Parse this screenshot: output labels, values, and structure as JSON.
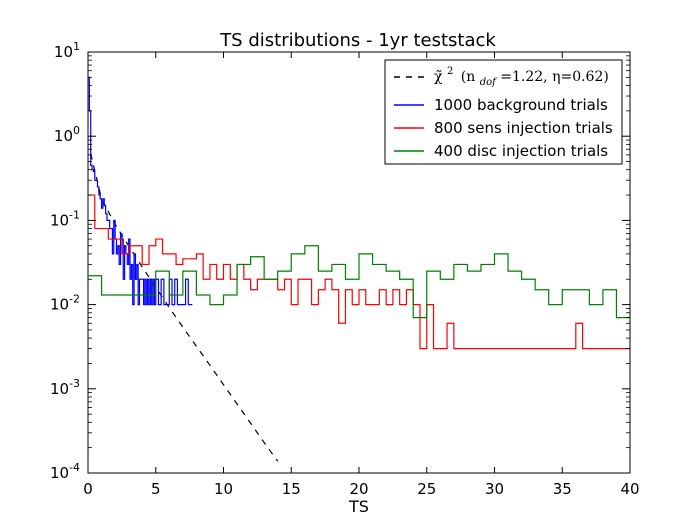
{
  "chart_data": {
    "type": "line",
    "title": "TS distributions - 1yr teststack",
    "xlabel": "TS",
    "ylabel": "",
    "xlim": [
      0,
      40
    ],
    "ylim": [
      0.0001,
      10
    ],
    "yscale": "log",
    "grid": false,
    "legend_position": "top-right",
    "x_ticks": [
      "0",
      "5",
      "10",
      "15",
      "20",
      "25",
      "30",
      "35",
      "40"
    ],
    "y_ticks": [
      {
        "base": "10",
        "exp": "-4"
      },
      {
        "base": "10",
        "exp": "-3"
      },
      {
        "base": "10",
        "exp": "-2"
      },
      {
        "base": "10",
        "exp": "-1"
      },
      {
        "base": "10",
        "exp": "0"
      },
      {
        "base": "10",
        "exp": "1"
      }
    ],
    "series": [
      {
        "name": "χ̃² (n_dof=1.22, η=0.62)",
        "legend_prefix": "χ̃",
        "legend_sup": "2",
        "legend_args": "(n",
        "legend_sub": "dof",
        "legend_rest": "=1.22, η=0.62)",
        "style": "dashed",
        "color": "#000000",
        "x": [
          0.2,
          1,
          2,
          3,
          4,
          5,
          6,
          7,
          8,
          9,
          10,
          11,
          12,
          13,
          14
        ],
        "values": [
          0.62,
          0.18,
          0.09,
          0.05,
          0.028,
          0.016,
          0.0092,
          0.0054,
          0.0032,
          0.0019,
          0.00112,
          0.00066,
          0.00039,
          0.00023,
          0.000138
        ]
      },
      {
        "name": "1000 background trials",
        "style": "step",
        "color": "#0000ff",
        "x": [
          0.0,
          0.1,
          0.2,
          0.3,
          0.4,
          0.5,
          0.6,
          0.7,
          0.8,
          0.9,
          1.0,
          1.1,
          1.2,
          1.3,
          1.4,
          1.5,
          1.6,
          1.7,
          1.8,
          1.9,
          2.0,
          2.1,
          2.2,
          2.3,
          2.4,
          2.5,
          2.6,
          2.7,
          2.8,
          2.9,
          3.0,
          3.1,
          3.2,
          3.3,
          3.4,
          3.5,
          3.6,
          3.7,
          3.8,
          3.9,
          4.0,
          4.1,
          4.2,
          4.3,
          4.4,
          4.5,
          4.6,
          4.7,
          4.8,
          4.9,
          5.0,
          5.2,
          5.4,
          5.6,
          5.8,
          6.0,
          6.2,
          6.4,
          6.6,
          6.8,
          7.0,
          7.2,
          7.4,
          7.6
        ],
        "values": [
          5.0,
          2.0,
          0.45,
          0.4,
          0.38,
          0.3,
          0.3,
          0.25,
          0.2,
          0.18,
          0.14,
          0.18,
          0.15,
          0.12,
          0.1,
          0.1,
          0.08,
          0.08,
          0.04,
          0.1,
          0.06,
          0.04,
          0.05,
          0.03,
          0.07,
          0.06,
          0.02,
          0.05,
          0.04,
          0.03,
          0.06,
          0.02,
          0.03,
          0.01,
          0.04,
          0.02,
          0.03,
          0.01,
          0.02,
          0.02,
          0.02,
          0.01,
          0.02,
          0.01,
          0.02,
          0.01,
          0.02,
          0.01,
          0.02,
          0.01,
          0.02,
          0.01,
          0.02,
          0.01,
          0.01,
          0.02,
          0.01,
          0.02,
          0.01,
          0.01,
          0.01,
          0.02,
          0.01,
          0.01
        ]
      },
      {
        "name": "800 sens injection trials",
        "style": "step",
        "color": "#ff0000",
        "x": [
          0.0,
          0.5,
          1.0,
          1.5,
          2.0,
          2.5,
          3.0,
          3.5,
          4.0,
          4.5,
          5.0,
          5.5,
          6.0,
          6.5,
          7.0,
          7.5,
          8.0,
          8.5,
          9.0,
          9.5,
          10.0,
          10.5,
          11.0,
          11.5,
          12.0,
          12.5,
          13.0,
          13.5,
          14.0,
          14.5,
          15.0,
          15.5,
          16.0,
          16.5,
          17.0,
          17.5,
          18.0,
          18.5,
          19.0,
          19.5,
          20.0,
          20.5,
          21.0,
          21.5,
          22.0,
          22.5,
          23.0,
          23.5,
          24.0,
          24.5,
          25.0,
          25.5,
          26.0,
          26.5,
          27.0,
          27.5,
          28.0,
          28.5,
          29.0,
          29.5,
          30.0,
          30.5,
          31.0,
          31.5,
          32.0,
          32.5,
          33.0,
          33.5,
          34.0,
          34.5,
          35.0,
          35.5,
          36.0,
          36.5,
          37.0,
          37.5,
          38.0,
          38.5,
          39.0,
          39.5
        ],
        "values": [
          0.2,
          0.08,
          0.08,
          0.06,
          0.06,
          0.04,
          0.05,
          0.05,
          0.03,
          0.05,
          0.06,
          0.04,
          0.04,
          0.03,
          0.035,
          0.035,
          0.04,
          0.02,
          0.03,
          0.02,
          0.03,
          0.02,
          0.03,
          0.02,
          0.015,
          0.02,
          0.02,
          0.02,
          0.015,
          0.02,
          0.01,
          0.02,
          0.02,
          0.01,
          0.015,
          0.02,
          0.015,
          0.006,
          0.015,
          0.01,
          0.015,
          0.01,
          0.01,
          0.015,
          0.01,
          0.015,
          0.01,
          0.015,
          0.01,
          0.003,
          0.01,
          0.003,
          0.003,
          0.006,
          0.003,
          0.003,
          0.003,
          0.003,
          0.003,
          0.003,
          0.003,
          0.003,
          0.003,
          0.003,
          0.003,
          0.003,
          0.003,
          0.003,
          0.003,
          0.003,
          0.003,
          0.003,
          0.006,
          0.003,
          0.003,
          0.003,
          0.003,
          0.003,
          0.003,
          0.003
        ]
      },
      {
        "name": "400 disc injection trials",
        "style": "step",
        "color": "#008000",
        "x": [
          0.0,
          1.0,
          2.0,
          3.0,
          4.0,
          5.0,
          6.0,
          7.0,
          8.0,
          9.0,
          10.0,
          11.0,
          12.0,
          13.0,
          14.0,
          15.0,
          16.0,
          17.0,
          18.0,
          19.0,
          20.0,
          21.0,
          22.0,
          23.0,
          24.0,
          25.0,
          26.0,
          27.0,
          28.0,
          29.0,
          30.0,
          31.0,
          32.0,
          33.0,
          34.0,
          35.0,
          36.0,
          37.0,
          38.0,
          39.0
        ],
        "values": [
          0.022,
          0.013,
          0.013,
          0.013,
          0.013,
          0.025,
          0.013,
          0.025,
          0.013,
          0.01,
          0.013,
          0.03,
          0.037,
          0.02,
          0.025,
          0.04,
          0.05,
          0.025,
          0.03,
          0.02,
          0.04,
          0.03,
          0.025,
          0.02,
          0.007,
          0.025,
          0.02,
          0.03,
          0.025,
          0.03,
          0.04,
          0.025,
          0.02,
          0.015,
          0.01,
          0.015,
          0.015,
          0.01,
          0.015,
          0.007
        ]
      }
    ]
  }
}
